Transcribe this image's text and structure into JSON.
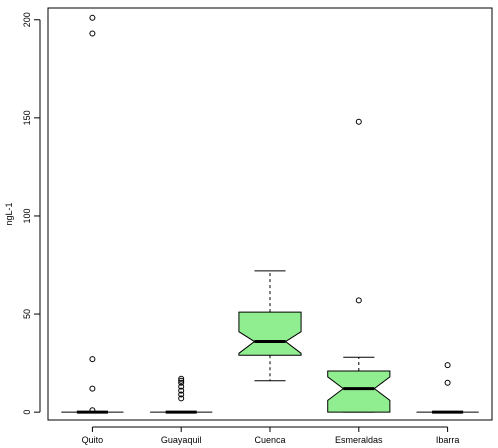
{
  "chart_data": {
    "type": "boxplot",
    "title": "",
    "xlabel": "",
    "ylabel": "ngL-1",
    "ylim": [
      -4,
      206
    ],
    "yticks": [
      0,
      50,
      100,
      150,
      200
    ],
    "notched": true,
    "colors": {
      "box_fill": "#90EE90",
      "stroke": "#000000"
    },
    "categories": [
      "Quito",
      "Guayaquil",
      "Cuenca",
      "Esmeraldas",
      "Ibarra"
    ],
    "series": [
      {
        "q1": 0,
        "median": 0,
        "q3": 0,
        "notch_low": 0,
        "notch_high": 0,
        "whisker_low": 0,
        "whisker_high": 0,
        "outliers": [
          1,
          12,
          27,
          193,
          201
        ]
      },
      {
        "q1": 0,
        "median": 0,
        "q3": 0,
        "notch_low": 0,
        "notch_high": 0,
        "whisker_low": 0,
        "whisker_high": 0,
        "outliers": [
          7,
          9,
          11,
          13,
          15,
          16,
          17
        ]
      },
      {
        "q1": 29,
        "median": 36,
        "q3": 51,
        "notch_low": 30,
        "notch_high": 41,
        "whisker_low": 16,
        "whisker_high": 72,
        "outliers": []
      },
      {
        "q1": 0,
        "median": 12,
        "q3": 21,
        "notch_low": 6,
        "notch_high": 18,
        "whisker_low": 0,
        "whisker_high": 28,
        "outliers": [
          57,
          148
        ]
      },
      {
        "q1": 0,
        "median": 0,
        "q3": 0,
        "notch_low": 0,
        "notch_high": 0,
        "whisker_low": 0,
        "whisker_high": 0,
        "outliers": [
          15,
          24
        ]
      }
    ]
  }
}
